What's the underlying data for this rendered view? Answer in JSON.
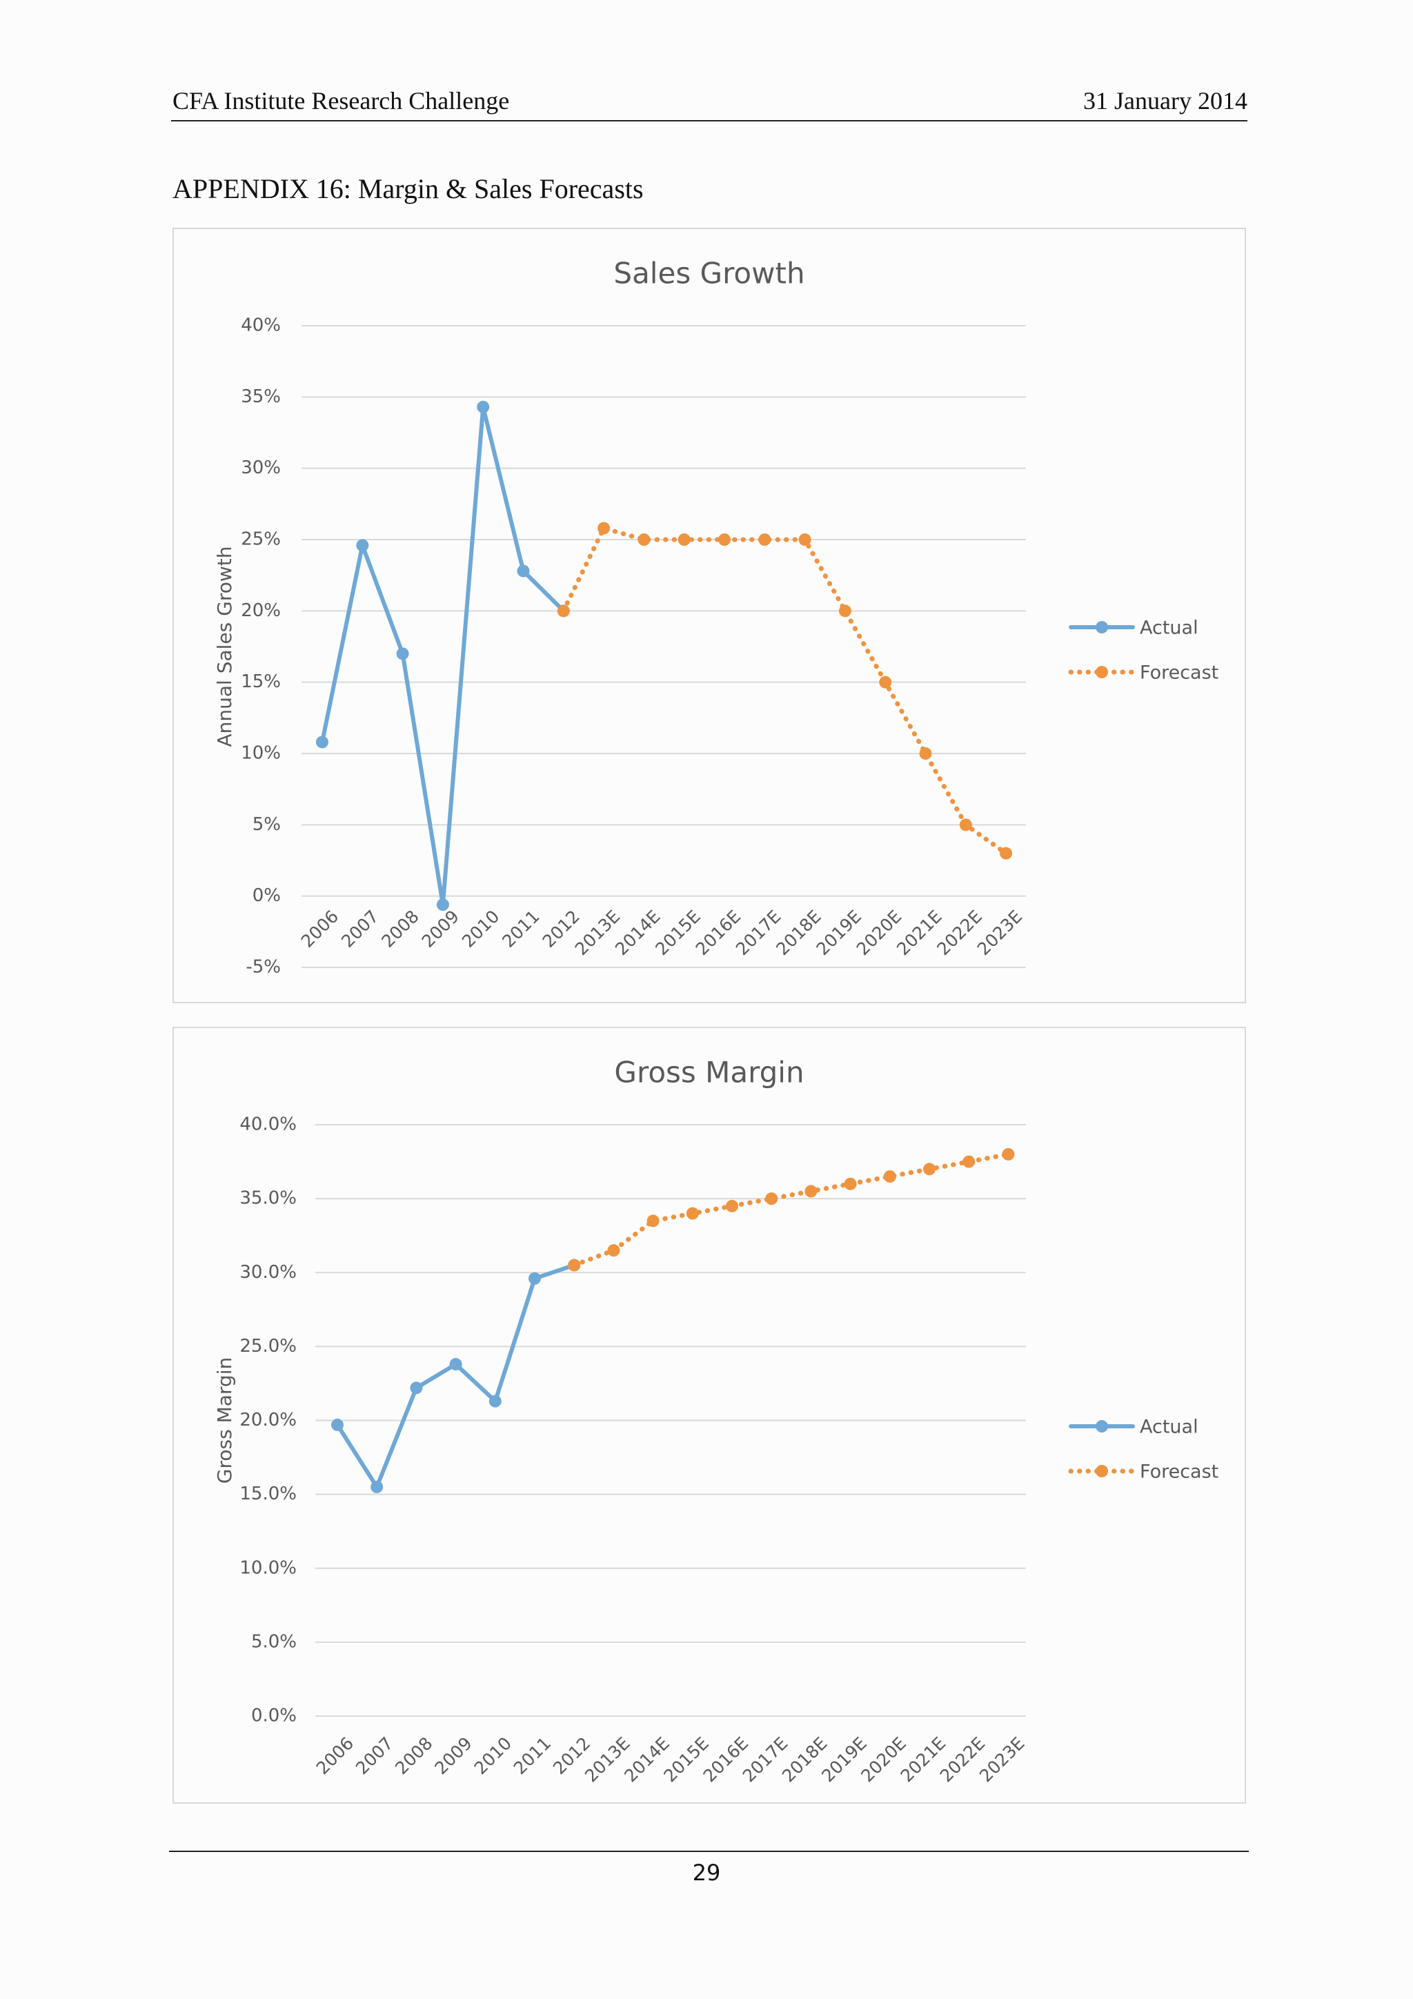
{
  "header": {
    "left": "CFA Institute Research Challenge",
    "right": "31 January 2014"
  },
  "appendix_title": "APPENDIX 16: Margin & Sales Forecasts",
  "page_number": "29",
  "colors": {
    "actual": "#6ea8d6",
    "forecast": "#ee9440",
    "grid": "#d9d9d9",
    "text": "#595959"
  },
  "chart_data": [
    {
      "type": "line",
      "title": "Sales Growth",
      "xlabel": "",
      "ylabel": "Annual Sales Growth",
      "ylim": [
        -5,
        40
      ],
      "ytick_values": [
        -5,
        0,
        5,
        10,
        15,
        20,
        25,
        30,
        35,
        40
      ],
      "ytick_labels": [
        "-5%",
        "0%",
        "5%",
        "10%",
        "15%",
        "20%",
        "25%",
        "30%",
        "35%",
        "40%"
      ],
      "categories": [
        "2006",
        "2007",
        "2008",
        "2009",
        "2010",
        "2011",
        "2012",
        "2013E",
        "2014E",
        "2015E",
        "2016E",
        "2017E",
        "2018E",
        "2019E",
        "2020E",
        "2021E",
        "2022E",
        "2023E"
      ],
      "series": [
        {
          "name": "Actual",
          "style": "solid",
          "color": "#6ea8d6",
          "values": [
            10.8,
            24.6,
            17.0,
            -0.6,
            34.3,
            22.8,
            20.0,
            null,
            null,
            null,
            null,
            null,
            null,
            null,
            null,
            null,
            null,
            null
          ]
        },
        {
          "name": "Forecast",
          "style": "dotted",
          "color": "#ee9440",
          "values": [
            null,
            null,
            null,
            null,
            null,
            null,
            20.0,
            25.8,
            25.0,
            25.0,
            25.0,
            25.0,
            25.0,
            20.0,
            15.0,
            10.0,
            5.0,
            3.0
          ]
        }
      ],
      "legend": [
        "Actual",
        "Forecast"
      ],
      "legend_position": "right",
      "grid": true
    },
    {
      "type": "line",
      "title": "Gross Margin",
      "xlabel": "",
      "ylabel": "Gross Margin",
      "ylim": [
        0,
        40
      ],
      "ytick_values": [
        0,
        5,
        10,
        15,
        20,
        25,
        30,
        35,
        40
      ],
      "ytick_labels": [
        "0.0%",
        "5.0%",
        "10.0%",
        "15.0%",
        "20.0%",
        "25.0%",
        "30.0%",
        "35.0%",
        "40.0%"
      ],
      "categories": [
        "2006",
        "2007",
        "2008",
        "2009",
        "2010",
        "2011",
        "2012",
        "2013E",
        "2014E",
        "2015E",
        "2016E",
        "2017E",
        "2018E",
        "2019E",
        "2020E",
        "2021E",
        "2022E",
        "2023E"
      ],
      "series": [
        {
          "name": "Actual",
          "style": "solid",
          "color": "#6ea8d6",
          "values": [
            19.7,
            15.5,
            22.2,
            23.8,
            21.3,
            29.6,
            30.5,
            null,
            null,
            null,
            null,
            null,
            null,
            null,
            null,
            null,
            null,
            null
          ]
        },
        {
          "name": "Forecast",
          "style": "dotted",
          "color": "#ee9440",
          "values": [
            null,
            null,
            null,
            null,
            null,
            null,
            30.5,
            31.5,
            33.5,
            34.0,
            34.5,
            35.0,
            35.5,
            36.0,
            36.5,
            37.0,
            37.5,
            38.0
          ]
        }
      ],
      "legend": [
        "Actual",
        "Forecast"
      ],
      "legend_position": "right",
      "grid": true
    }
  ]
}
